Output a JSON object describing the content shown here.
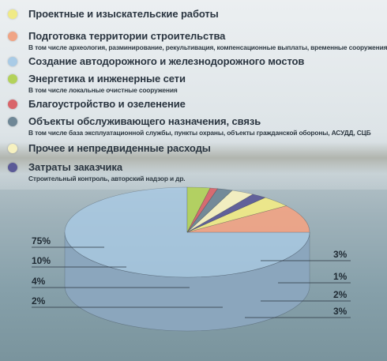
{
  "legend": [
    {
      "label": "Проектные и изыскательские работы",
      "sub": "",
      "color": "#f0ea86"
    },
    {
      "label": "Подготовка территории строительства",
      "sub": "В том числе археология, разминирование, рекультивация, компенсационные выплаты, временные сооружения",
      "color": "#f0a485"
    },
    {
      "label": "Создание автодорожного и железнодорожного мостов",
      "sub": "",
      "color": "#a9cbe6"
    },
    {
      "label": "Энергетика и инженерные сети",
      "sub": "В том числе локальные очистные сооружения",
      "color": "#b3d25a"
    },
    {
      "label": "Благоустройство и озеленение",
      "sub": "",
      "color": "#d9656a"
    },
    {
      "label": "Объекты обслуживающего назначения, связь",
      "sub": "В том числе база эксплуатационной службы, пункты охраны, объекты гражданской обороны, АСУДД, СЦБ",
      "color": "#6f8796"
    },
    {
      "label": "Прочее и непредвиденные расходы",
      "sub": "",
      "color": "#f6f1c0"
    },
    {
      "label": "Затраты заказчика",
      "sub": "Строительный контроль, авторский надзор и др.",
      "color": "#5b5a97"
    }
  ],
  "chart_data": {
    "type": "pie",
    "title": "",
    "slices": [
      {
        "name": "Создание автодорожного и железнодорожного мостов",
        "value": 75,
        "label": "75%",
        "color": "#a9cbe6"
      },
      {
        "name": "Подготовка территории строительства",
        "value": 10,
        "label": "10%",
        "color": "#f0a485"
      },
      {
        "name": "Проектные и изыскательские работы",
        "value": 4,
        "label": "4%",
        "color": "#f0ea86"
      },
      {
        "name": "Затраты заказчика",
        "value": 2,
        "label": "2%",
        "color": "#5b5a97"
      },
      {
        "name": "Прочее и непредвиденные расходы",
        "value": 3,
        "label": "3%",
        "color": "#f6f1c0"
      },
      {
        "name": "Объекты обслуживающего назначения, связь",
        "value": 2,
        "label": "2%",
        "color": "#6f8796"
      },
      {
        "name": "Благоустройство и озеленение",
        "value": 1,
        "label": "1%",
        "color": "#d9656a"
      },
      {
        "name": "Энергетика и инженерные сети",
        "value": 3,
        "label": "3%",
        "color": "#b3d25a"
      }
    ]
  }
}
